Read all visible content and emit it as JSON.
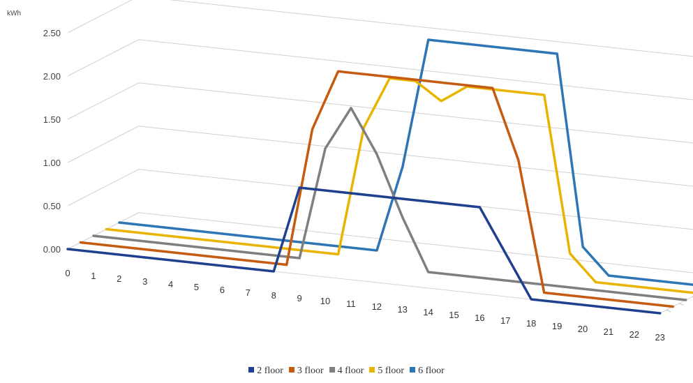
{
  "chart_data": {
    "type": "line",
    "style": "3d-ribbon",
    "unit_label": "kWh",
    "y_ticks": [
      "0.00",
      "0.50",
      "1.00",
      "1.50",
      "2.00",
      "2.50"
    ],
    "ylim": [
      0,
      2.5
    ],
    "x": [
      0,
      1,
      2,
      3,
      4,
      5,
      6,
      7,
      8,
      9,
      10,
      11,
      12,
      13,
      14,
      15,
      16,
      17,
      18,
      19,
      20,
      21,
      22,
      23
    ],
    "x_tick_labels": [
      "0",
      "1",
      "2",
      "3",
      "4",
      "5",
      "6",
      "7",
      "8",
      "9",
      "10",
      "11",
      "12",
      "13",
      "14",
      "15",
      "16",
      "17",
      "18",
      "19",
      "20",
      "21",
      "22",
      "23"
    ],
    "grid": true,
    "legend_position": "bottom",
    "series": [
      {
        "name": "2 floor",
        "color": "#1f3f8f",
        "values": [
          0,
          0,
          0,
          0,
          0,
          0,
          0,
          0,
          0,
          1.0,
          1.0,
          1.0,
          1.0,
          1.0,
          1.0,
          1.0,
          1.0,
          0.5,
          0,
          0,
          0,
          0,
          0,
          0
        ]
      },
      {
        "name": "3 floor",
        "color": "#c55a11",
        "values": [
          0,
          0,
          0,
          0,
          0,
          0,
          0,
          0,
          0,
          1.6,
          2.3,
          2.3,
          2.3,
          2.3,
          2.3,
          2.3,
          2.3,
          1.5,
          0,
          0,
          0,
          0,
          0,
          0
        ]
      },
      {
        "name": "4 floor",
        "color": "#7f7f7f",
        "values": [
          0,
          0,
          0,
          0,
          0,
          0,
          0,
          0,
          0,
          1.3,
          1.8,
          1.3,
          0.6,
          0,
          0,
          0,
          0,
          0,
          0,
          0,
          0,
          0,
          0,
          0
        ]
      },
      {
        "name": "5 floor",
        "color": "#e8b400",
        "values": [
          0,
          0,
          0,
          0,
          0,
          0,
          0,
          0,
          0,
          0,
          1.5,
          2.1,
          2.1,
          1.9,
          2.1,
          2.1,
          2.1,
          2.1,
          0.3,
          0,
          0,
          0,
          0,
          0
        ]
      },
      {
        "name": "6 floor",
        "color": "#2e75b6",
        "values": [
          0,
          0,
          0,
          0,
          0,
          0,
          0,
          0,
          0,
          0,
          0,
          1.0,
          2.5,
          2.5,
          2.5,
          2.5,
          2.5,
          2.5,
          0.3,
          0,
          0,
          0,
          0,
          0
        ]
      }
    ]
  }
}
